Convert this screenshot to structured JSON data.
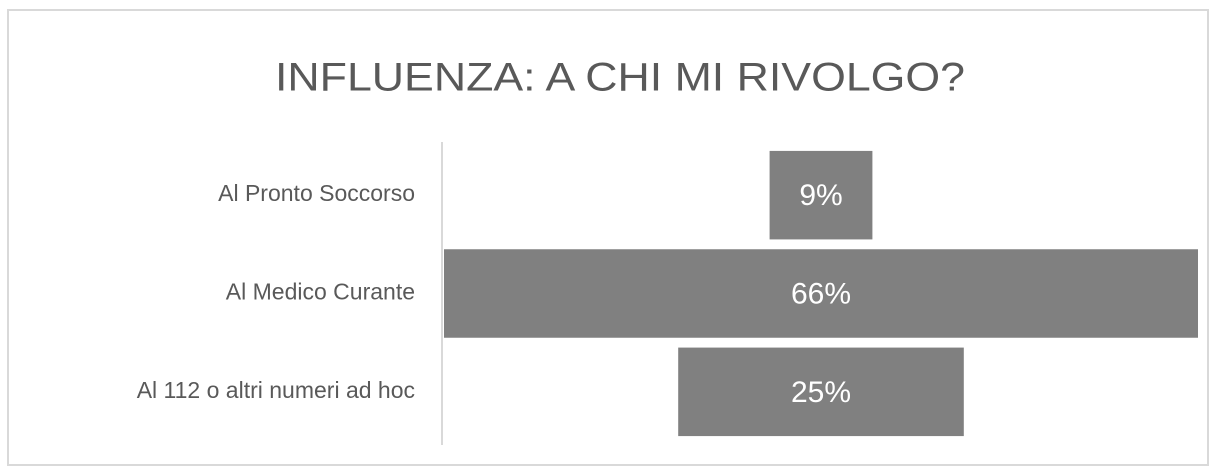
{
  "chart_data": {
    "type": "funnel",
    "title": "INFLUENZA: A CHI MI RIVOLGO?",
    "categories": [
      "Al Pronto Soccorso",
      "Al Medico Curante",
      "Al 112 o altri numeri ad hoc"
    ],
    "values": [
      9,
      66,
      25
    ],
    "value_labels": [
      "9%",
      "66%",
      "25%"
    ],
    "color": "#808080"
  }
}
